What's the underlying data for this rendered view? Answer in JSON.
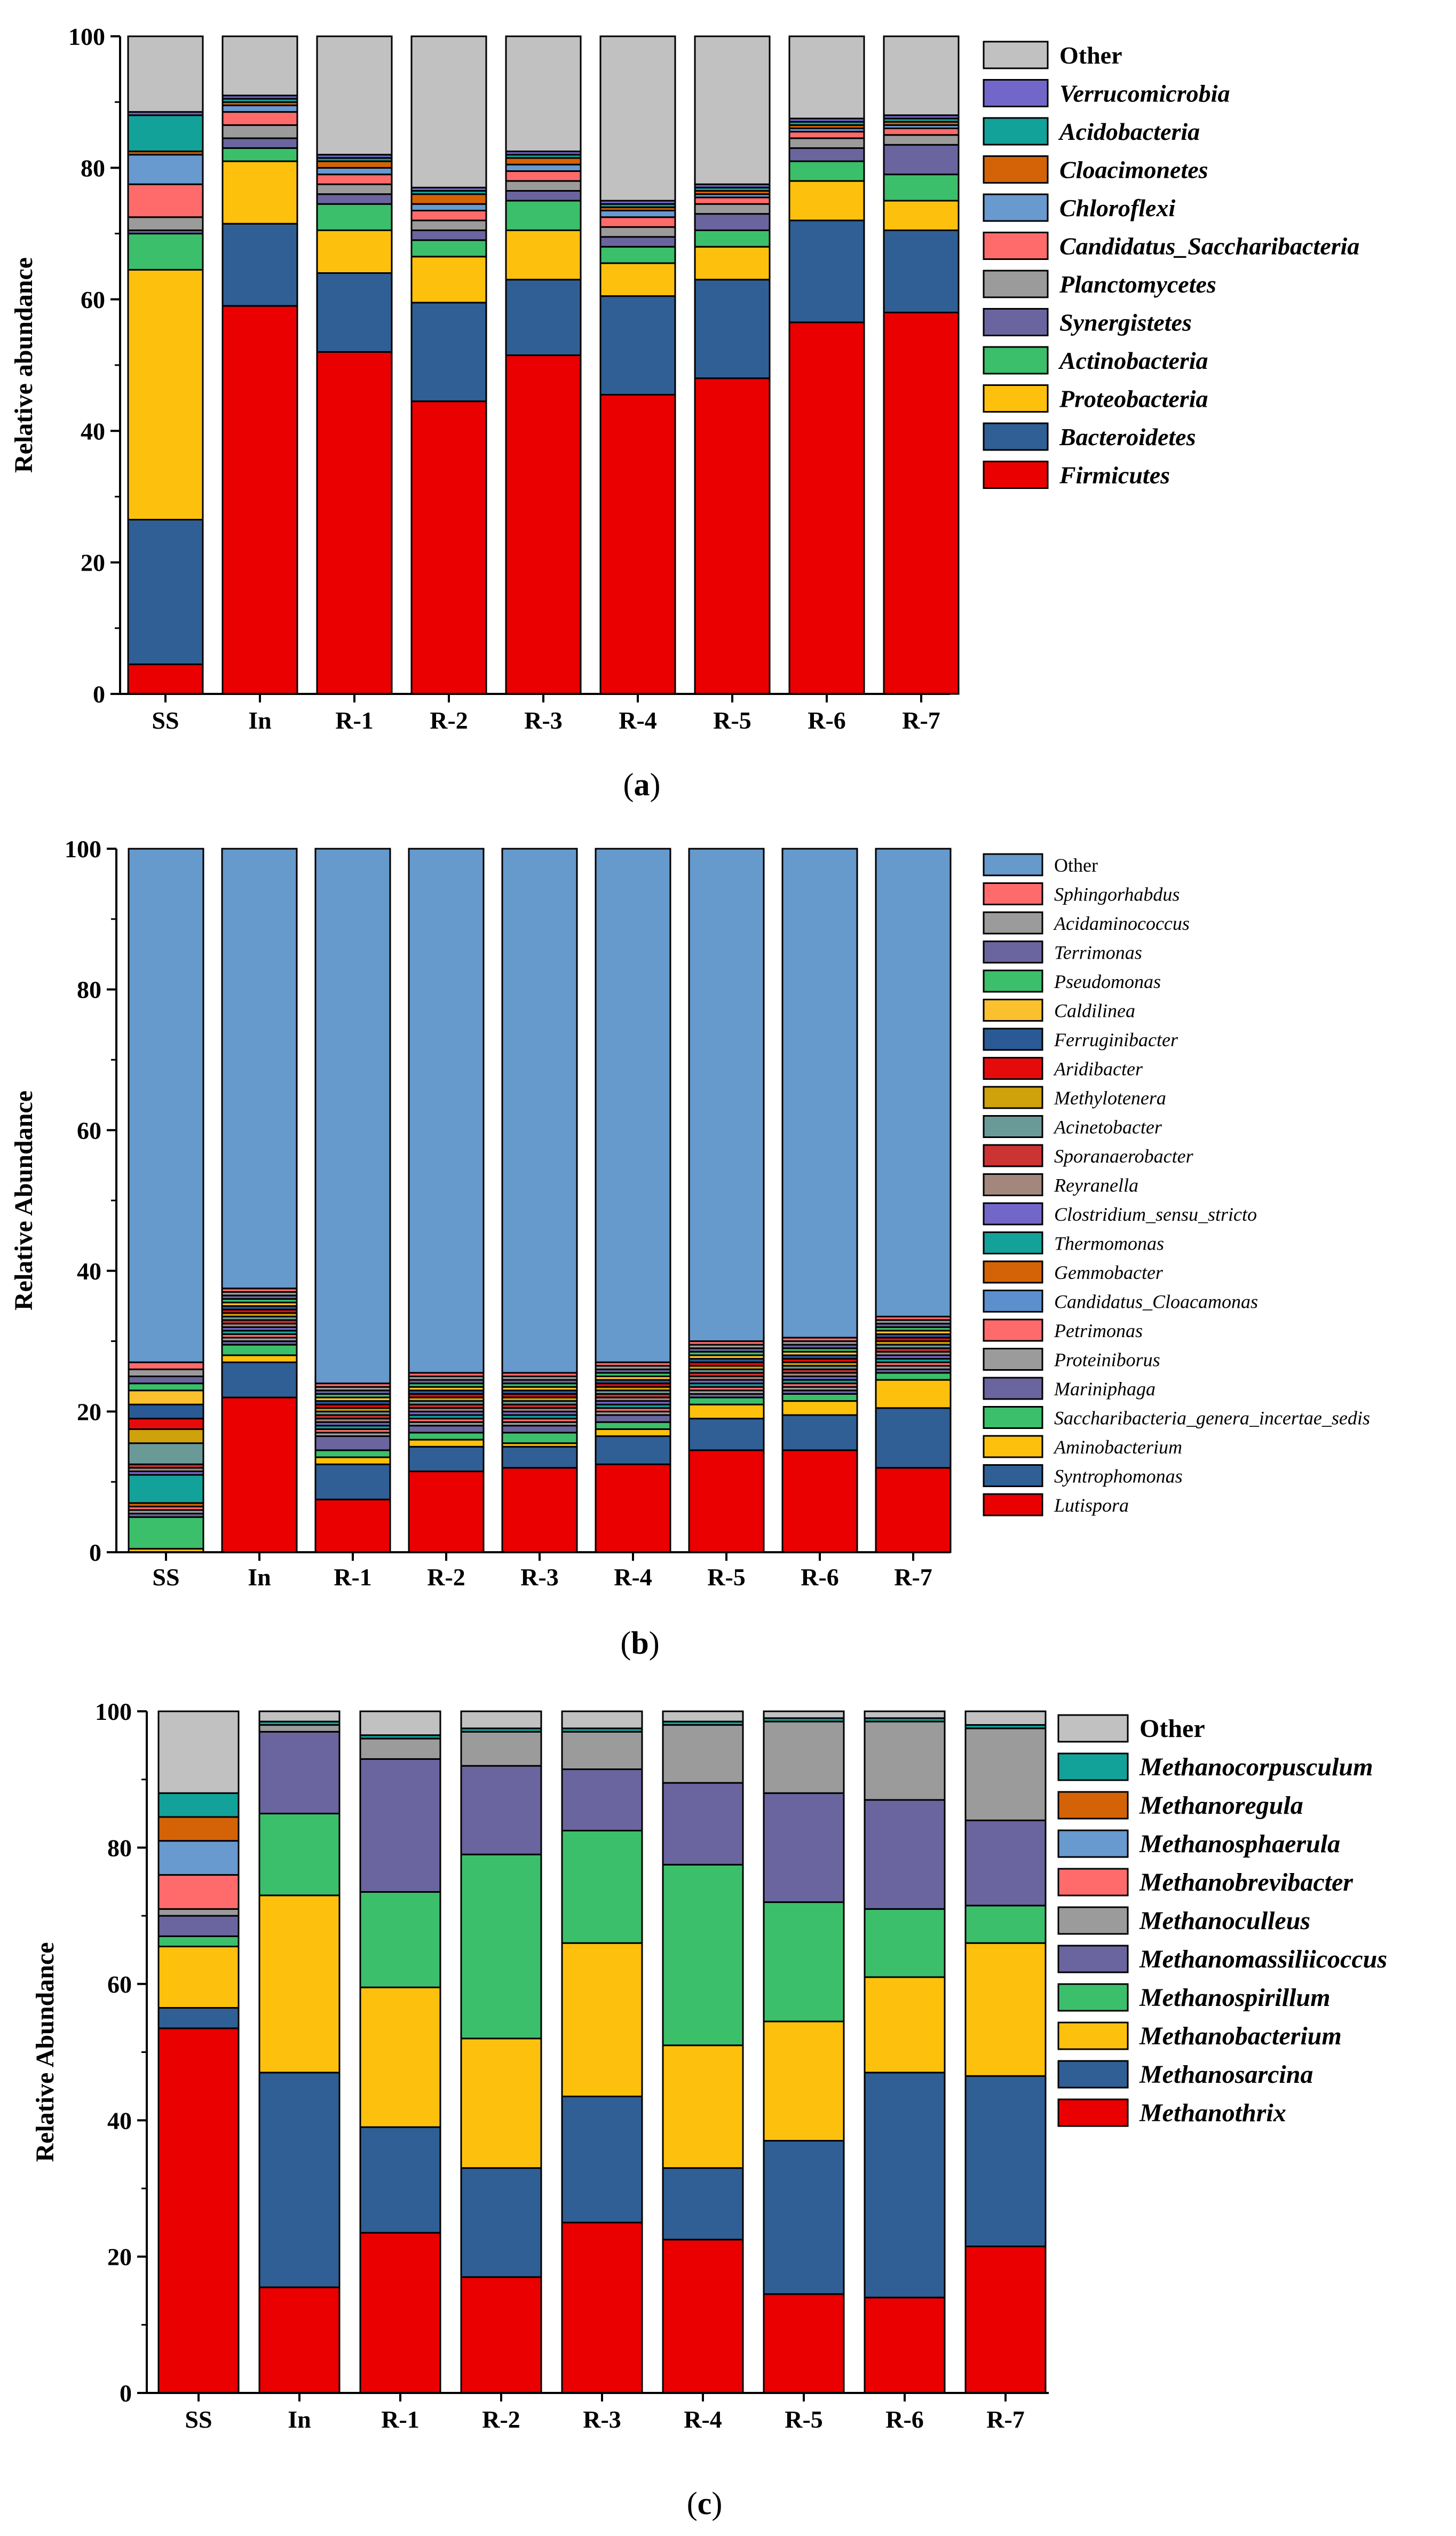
{
  "chart_data": [
    {
      "type": "bar",
      "stacked": true,
      "panel_label": "(a)",
      "panel_letter": "a",
      "title": "",
      "xlabel": "",
      "ylabel": "Relative abundance",
      "ylim": [
        0,
        100
      ],
      "yticks": [
        "0",
        "20",
        "40",
        "60",
        "80",
        "100"
      ],
      "categories": [
        "SS",
        "In",
        "R-1",
        "R-2",
        "R-3",
        "R-4",
        "R-5",
        "R-6",
        "R-7"
      ],
      "legend_position": "right",
      "series": [
        {
          "name": "Firmicutes",
          "color": "#ea0000",
          "values": [
            4.5,
            59,
            52,
            44.5,
            51.5,
            45.5,
            48,
            56.5,
            58
          ]
        },
        {
          "name": "Bacteroidetes",
          "color": "#2f5f95",
          "values": [
            22,
            12.5,
            12,
            15,
            11.5,
            15,
            15,
            15.5,
            12.5
          ]
        },
        {
          "name": "Proteobacteria",
          "color": "#fdc10d",
          "values": [
            38,
            9.5,
            6.5,
            7,
            7.5,
            5,
            5,
            6,
            4.5
          ]
        },
        {
          "name": "Actinobacteria",
          "color": "#3cbf6b",
          "values": [
            5.5,
            2,
            4,
            2.5,
            4.5,
            2.5,
            2.5,
            3,
            4
          ]
        },
        {
          "name": "Synergistetes",
          "color": "#6a659e",
          "values": [
            0.5,
            1.5,
            1.5,
            1.5,
            1.5,
            1.5,
            2.5,
            2,
            4.5
          ]
        },
        {
          "name": "Planctomycetes",
          "color": "#9b9b9b",
          "values": [
            2,
            2,
            1.5,
            1.5,
            1.5,
            1.5,
            1.5,
            1.5,
            1.5
          ]
        },
        {
          "name": "Candidatus_Saccharibacteria",
          "color": "#ff6b6b",
          "values": [
            5,
            2,
            1.5,
            1.5,
            1.5,
            1.5,
            1,
            1,
            1
          ]
        },
        {
          "name": "Chloroflexi",
          "color": "#6899cf",
          "values": [
            4.5,
            1,
            1,
            1,
            1,
            1,
            0.5,
            0.5,
            0.5
          ]
        },
        {
          "name": "Cloacimonetes",
          "color": "#d46307",
          "values": [
            0.5,
            0.5,
            1,
            1.5,
            1,
            0.5,
            0.5,
            0.5,
            0.5
          ]
        },
        {
          "name": "Acidobacteria",
          "color": "#13a29a",
          "values": [
            5.5,
            0.5,
            0.5,
            0.5,
            0.5,
            0.5,
            0.5,
            0.5,
            0.5
          ]
        },
        {
          "name": "Verrucomicrobia",
          "color": "#7267c8",
          "values": [
            0.5,
            0.5,
            0.5,
            0.5,
            0.5,
            0.5,
            0.5,
            0.5,
            0.5
          ]
        },
        {
          "name": "Other",
          "color": "#c1c1c1",
          "values": [
            11.5,
            9,
            18,
            23.5,
            17.5,
            24.5,
            22.5,
            12.5,
            12
          ]
        }
      ]
    },
    {
      "type": "bar",
      "stacked": true,
      "panel_label": "(b)",
      "panel_letter": "b",
      "title": "",
      "xlabel": "",
      "ylabel": "Relative Abundance",
      "ylim": [
        0,
        100
      ],
      "yticks": [
        "0",
        "20",
        "40",
        "60",
        "80",
        "100"
      ],
      "categories": [
        "SS",
        "In",
        "R-1",
        "R-2",
        "R-3",
        "R-4",
        "R-5",
        "R-6",
        "R-7"
      ],
      "legend_position": "right",
      "series": [
        {
          "name": "Lutispora",
          "color": "#ea0000",
          "values": [
            0,
            22,
            7.5,
            11.5,
            12,
            12.5,
            14.5,
            14.5,
            12
          ]
        },
        {
          "name": "Syntrophomonas",
          "color": "#2f5f95",
          "values": [
            0,
            5,
            5,
            3.5,
            3,
            4,
            4.5,
            5,
            8.5
          ]
        },
        {
          "name": "Aminobacterium",
          "color": "#fdc10d",
          "values": [
            0.5,
            1,
            1,
            1,
            0.5,
            1,
            2,
            2,
            4
          ]
        },
        {
          "name": "Saccharibacteria_genera_incertae_sedis",
          "color": "#3cbf6b",
          "values": [
            4.5,
            1.5,
            1,
            1,
            1.5,
            1,
            1,
            1,
            1
          ]
        },
        {
          "name": "Mariniphaga",
          "color": "#6a659e",
          "values": [
            0.5,
            0.5,
            2,
            1,
            1,
            1,
            0.5,
            0.5,
            0.5
          ]
        },
        {
          "name": "Proteiniborus",
          "color": "#9b9b9b",
          "values": [
            0.5,
            0.5,
            0.5,
            0.5,
            0.5,
            0.5,
            0.5,
            0.5,
            0.5
          ]
        },
        {
          "name": "Petrimonas",
          "color": "#ff6b6b",
          "values": [
            0.5,
            0.5,
            0.5,
            0.5,
            0.5,
            0.5,
            0.5,
            0.5,
            0.5
          ]
        },
        {
          "name": "Candidatus_Cloacamonas",
          "color": "#5b8fcd",
          "values": [
            0,
            0,
            0,
            0,
            0,
            0,
            0,
            0,
            0
          ]
        },
        {
          "name": "Gemmobacter",
          "color": "#d46307",
          "values": [
            0.5,
            0,
            0,
            0,
            0,
            0,
            0,
            0,
            0
          ]
        },
        {
          "name": "Thermomonas",
          "color": "#13a29a",
          "values": [
            4,
            0.5,
            0.5,
            0.5,
            0.5,
            0.5,
            0.5,
            0.5,
            0.5
          ]
        },
        {
          "name": "Clostridium_sensu_stricto",
          "color": "#7267c8",
          "values": [
            0.5,
            0.5,
            0.5,
            0.5,
            0.5,
            0.5,
            0.5,
            0.5,
            0.5
          ]
        },
        {
          "name": "Reyranella",
          "color": "#a3877c",
          "values": [
            0.5,
            0.5,
            0.5,
            0.5,
            0.5,
            0.5,
            0.5,
            0.5,
            0.5
          ]
        },
        {
          "name": "Sporanaerobacter",
          "color": "#cc3333",
          "values": [
            0.5,
            0.5,
            0.5,
            0.5,
            0.5,
            0.5,
            0.5,
            0.5,
            0.5
          ]
        },
        {
          "name": "Acinetobacter",
          "color": "#6a9a97",
          "values": [
            3,
            0.5,
            0.5,
            0.5,
            0.5,
            0.5,
            0.5,
            0.5,
            0.5
          ]
        },
        {
          "name": "Methylotenera",
          "color": "#cfa10a",
          "values": [
            2,
            0.5,
            0.5,
            0.5,
            0.5,
            0.5,
            0.5,
            0.5,
            0.5
          ]
        },
        {
          "name": "Aridibacter",
          "color": "#e60b0b",
          "values": [
            1.5,
            0.5,
            0.5,
            0.5,
            0.5,
            0.5,
            0.5,
            0.5,
            0.5
          ]
        },
        {
          "name": "Ferruginibacter",
          "color": "#2a5a95",
          "values": [
            2,
            0.5,
            0.5,
            0.5,
            0.5,
            0.5,
            0.5,
            0.5,
            0.5
          ]
        },
        {
          "name": "Caldilinea",
          "color": "#fbc02d",
          "values": [
            2,
            0.5,
            0.5,
            0.5,
            0.5,
            0.5,
            0.5,
            0.5,
            0.5
          ]
        },
        {
          "name": "Pseudomonas",
          "color": "#3cbf6b",
          "values": [
            1,
            0.5,
            0.5,
            0.5,
            0.5,
            0.5,
            0.5,
            0.5,
            0.5
          ]
        },
        {
          "name": "Terrimonas",
          "color": "#6a659e",
          "values": [
            1,
            0.5,
            0.5,
            0.5,
            0.5,
            0.5,
            0.5,
            0.5,
            0.5
          ]
        },
        {
          "name": "Acidaminococcus",
          "color": "#9b9b9b",
          "values": [
            1,
            0.5,
            0.5,
            0.5,
            0.5,
            0.5,
            0.5,
            0.5,
            0.5
          ]
        },
        {
          "name": "Sphingorhabdus",
          "color": "#ff6b6b",
          "values": [
            1,
            0.5,
            0.5,
            0.5,
            0.5,
            0.5,
            0.5,
            0.5,
            0.5
          ]
        },
        {
          "name": "Other",
          "color": "#6699cc",
          "values": [
            73,
            63.5,
            77,
            77,
            77.5,
            76.5,
            74,
            73,
            70
          ]
        }
      ]
    },
    {
      "type": "bar",
      "stacked": true,
      "panel_label": "(c)",
      "panel_letter": "c",
      "title": "",
      "xlabel": "",
      "ylabel": "Relative Abundance",
      "ylim": [
        0,
        100
      ],
      "yticks": [
        "0",
        "20",
        "40",
        "60",
        "80",
        "100"
      ],
      "categories": [
        "SS",
        "In",
        "R-1",
        "R-2",
        "R-3",
        "R-4",
        "R-5",
        "R-6",
        "R-7"
      ],
      "legend_position": "right",
      "series": [
        {
          "name": "Methanothrix",
          "color": "#ea0000",
          "values": [
            53.5,
            15.5,
            23.5,
            17,
            25,
            22.5,
            14.5,
            14,
            21.5
          ]
        },
        {
          "name": "Methanosarcina",
          "color": "#2f5f95",
          "values": [
            3,
            31.5,
            15.5,
            16,
            18.5,
            10.5,
            22.5,
            33,
            25
          ]
        },
        {
          "name": "Methanobacterium",
          "color": "#fdc10d",
          "values": [
            9,
            26,
            20.5,
            19,
            22.5,
            18,
            17.5,
            14,
            19.5
          ]
        },
        {
          "name": "Methanospirillum",
          "color": "#3cbf6b",
          "values": [
            1.5,
            12,
            14,
            27,
            16.5,
            26.5,
            17.5,
            10,
            5.5
          ]
        },
        {
          "name": "Methanomassiliicoccus",
          "color": "#6a659e",
          "values": [
            3,
            12,
            19.5,
            13,
            9,
            12,
            16,
            16,
            12.5
          ]
        },
        {
          "name": "Methanoculleus",
          "color": "#9b9b9b",
          "values": [
            1,
            1,
            3,
            5,
            5.5,
            8.5,
            10.5,
            11.5,
            13.5
          ]
        },
        {
          "name": "Methanobrevibacter",
          "color": "#ff6b6b",
          "values": [
            5,
            0,
            0,
            0,
            0,
            0,
            0,
            0,
            0
          ]
        },
        {
          "name": "Methanosphaerula",
          "color": "#6899cf",
          "values": [
            5,
            0,
            0,
            0,
            0,
            0,
            0,
            0,
            0
          ]
        },
        {
          "name": "Methanoregula",
          "color": "#d46307",
          "values": [
            3.5,
            0,
            0,
            0,
            0,
            0,
            0,
            0,
            0
          ]
        },
        {
          "name": "Methanocorpusculum",
          "color": "#13a29a",
          "values": [
            3.5,
            0.5,
            0.5,
            0.5,
            0.5,
            0.5,
            0.5,
            0.5,
            0.5
          ]
        },
        {
          "name": "Other",
          "color": "#c1c1c1",
          "values": [
            12,
            2,
            3.5,
            3,
            2.5,
            1.5,
            1,
            1,
            2.5
          ]
        }
      ]
    }
  ]
}
